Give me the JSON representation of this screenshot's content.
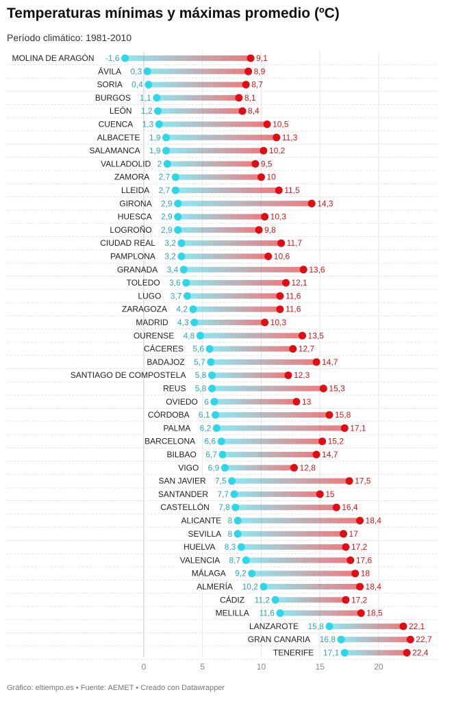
{
  "chart_data": {
    "type": "dumbbell",
    "title": "Temperaturas mínimas y máximas promedio (ºC)",
    "subtitle": "Período climático: 1981-2010",
    "x_ticks": [
      0,
      5,
      10,
      15,
      20
    ],
    "xlim": [
      -2,
      23
    ],
    "colors": {
      "min": "#2ed6ea",
      "max": "#e00d12",
      "min_label": "#2aa8b8",
      "max_label": "#dd1111"
    },
    "rows": [
      {
        "city": "MOLINA DE ARAGÓN",
        "min": -1.6,
        "max": 9.1,
        "min_label": "-1,6",
        "max_label": "9,1"
      },
      {
        "city": "ÁVILA",
        "min": 0.3,
        "max": 8.9,
        "min_label": "0,3",
        "max_label": "8,9"
      },
      {
        "city": "SORIA",
        "min": 0.4,
        "max": 8.7,
        "min_label": "0,4",
        "max_label": "8,7"
      },
      {
        "city": "BURGOS",
        "min": 1.1,
        "max": 8.1,
        "min_label": "1,1",
        "max_label": "8,1"
      },
      {
        "city": "LEÓN",
        "min": 1.2,
        "max": 8.4,
        "min_label": "1,2",
        "max_label": "8,4"
      },
      {
        "city": "CUENCA",
        "min": 1.3,
        "max": 10.5,
        "min_label": "1,3",
        "max_label": "10,5"
      },
      {
        "city": "ALBACETE",
        "min": 1.9,
        "max": 11.3,
        "min_label": "1,9",
        "max_label": "11,3"
      },
      {
        "city": "SALAMANCA",
        "min": 1.9,
        "max": 10.2,
        "min_label": "1,9",
        "max_label": "10,2"
      },
      {
        "city": "VALLADOLID",
        "min": 2,
        "max": 9.5,
        "min_label": "2",
        "max_label": "9,5"
      },
      {
        "city": "ZAMORA",
        "min": 2.7,
        "max": 10,
        "min_label": "2,7",
        "max_label": "10"
      },
      {
        "city": "LLEIDA",
        "min": 2.7,
        "max": 11.5,
        "min_label": "2,7",
        "max_label": "11,5"
      },
      {
        "city": "GIRONA",
        "min": 2.9,
        "max": 14.3,
        "min_label": "2,9",
        "max_label": "14,3"
      },
      {
        "city": "HUESCA",
        "min": 2.9,
        "max": 10.3,
        "min_label": "2,9",
        "max_label": "10,3"
      },
      {
        "city": "LOGROÑO",
        "min": 2.9,
        "max": 9.8,
        "min_label": "2,9",
        "max_label": "9,8"
      },
      {
        "city": "CIUDAD REAL",
        "min": 3.2,
        "max": 11.7,
        "min_label": "3,2",
        "max_label": "11,7"
      },
      {
        "city": "PAMPLONA",
        "min": 3.2,
        "max": 10.6,
        "min_label": "3,2",
        "max_label": "10,6"
      },
      {
        "city": "GRANADA",
        "min": 3.4,
        "max": 13.6,
        "min_label": "3,4",
        "max_label": "13,6"
      },
      {
        "city": "TOLEDO",
        "min": 3.6,
        "max": 12.1,
        "min_label": "3,6",
        "max_label": "12,1"
      },
      {
        "city": "LUGO",
        "min": 3.7,
        "max": 11.6,
        "min_label": "3,7",
        "max_label": "11,6"
      },
      {
        "city": "ZARAGOZA",
        "min": 4.2,
        "max": 11.6,
        "min_label": "4,2",
        "max_label": "11,6"
      },
      {
        "city": "MADRID",
        "min": 4.3,
        "max": 10.3,
        "min_label": "4,3",
        "max_label": "10,3"
      },
      {
        "city": "OURENSE",
        "min": 4.8,
        "max": 13.5,
        "min_label": "4,8",
        "max_label": "13,5"
      },
      {
        "city": "CÁCERES",
        "min": 5.6,
        "max": 12.7,
        "min_label": "5,6",
        "max_label": "12,7"
      },
      {
        "city": "BADAJOZ",
        "min": 5.7,
        "max": 14.7,
        "min_label": "5,7",
        "max_label": "14,7"
      },
      {
        "city": "SANTIAGO DE COMPOSTELA",
        "min": 5.8,
        "max": 12.3,
        "min_label": "5,8",
        "max_label": "12,3"
      },
      {
        "city": "REUS",
        "min": 5.8,
        "max": 15.3,
        "min_label": "5,8",
        "max_label": "15,3"
      },
      {
        "city": "OVIEDO",
        "min": 6,
        "max": 13,
        "min_label": "6",
        "max_label": "13"
      },
      {
        "city": "CÓRDOBA",
        "min": 6.1,
        "max": 15.8,
        "min_label": "6,1",
        "max_label": "15,8"
      },
      {
        "city": "PALMA",
        "min": 6.2,
        "max": 17.1,
        "min_label": "6,2",
        "max_label": "17,1"
      },
      {
        "city": "BARCELONA",
        "min": 6.6,
        "max": 15.2,
        "min_label": "6,6",
        "max_label": "15,2"
      },
      {
        "city": "BILBAO",
        "min": 6.7,
        "max": 14.7,
        "min_label": "6,7",
        "max_label": "14,7"
      },
      {
        "city": "VIGO",
        "min": 6.9,
        "max": 12.8,
        "min_label": "6,9",
        "max_label": "12,8"
      },
      {
        "city": "SAN JAVIER",
        "min": 7.5,
        "max": 17.5,
        "min_label": "7,5",
        "max_label": "17,5"
      },
      {
        "city": "SANTANDER",
        "min": 7.7,
        "max": 15,
        "min_label": "7,7",
        "max_label": "15"
      },
      {
        "city": "CASTELLÓN",
        "min": 7.8,
        "max": 16.4,
        "min_label": "7,8",
        "max_label": "16,4"
      },
      {
        "city": "ALICANTE",
        "min": 8,
        "max": 18.4,
        "min_label": "8",
        "max_label": "18,4"
      },
      {
        "city": "SEVILLA",
        "min": 8,
        "max": 17,
        "min_label": "8",
        "max_label": "17"
      },
      {
        "city": "HUELVA",
        "min": 8.3,
        "max": 17.2,
        "min_label": "8,3",
        "max_label": "17,2"
      },
      {
        "city": "VALENCIA",
        "min": 8.7,
        "max": 17.6,
        "min_label": "8,7",
        "max_label": "17,6"
      },
      {
        "city": "MÁLAGA",
        "min": 9.2,
        "max": 18,
        "min_label": "9,2",
        "max_label": "18"
      },
      {
        "city": "ALMERÍA",
        "min": 10.2,
        "max": 18.4,
        "min_label": "10,2",
        "max_label": "18,4"
      },
      {
        "city": "CÁDIZ",
        "min": 11.2,
        "max": 17.2,
        "min_label": "11,2",
        "max_label": "17,2"
      },
      {
        "city": "MELILLA",
        "min": 11.6,
        "max": 18.5,
        "min_label": "11,6",
        "max_label": "18,5"
      },
      {
        "city": "LANZAROTE",
        "min": 15.8,
        "max": 22.1,
        "min_label": "15,8",
        "max_label": "22,1"
      },
      {
        "city": "GRAN CANARIA",
        "min": 16.8,
        "max": 22.7,
        "min_label": "16,8",
        "max_label": "22,7"
      },
      {
        "city": "TENERIFE",
        "min": 17.1,
        "max": 22.4,
        "min_label": "17,1",
        "max_label": "22,4"
      }
    ]
  },
  "footer": "Gráfico: eltiempo.es • Fuente: AEMET • Creado con Datawrapper"
}
